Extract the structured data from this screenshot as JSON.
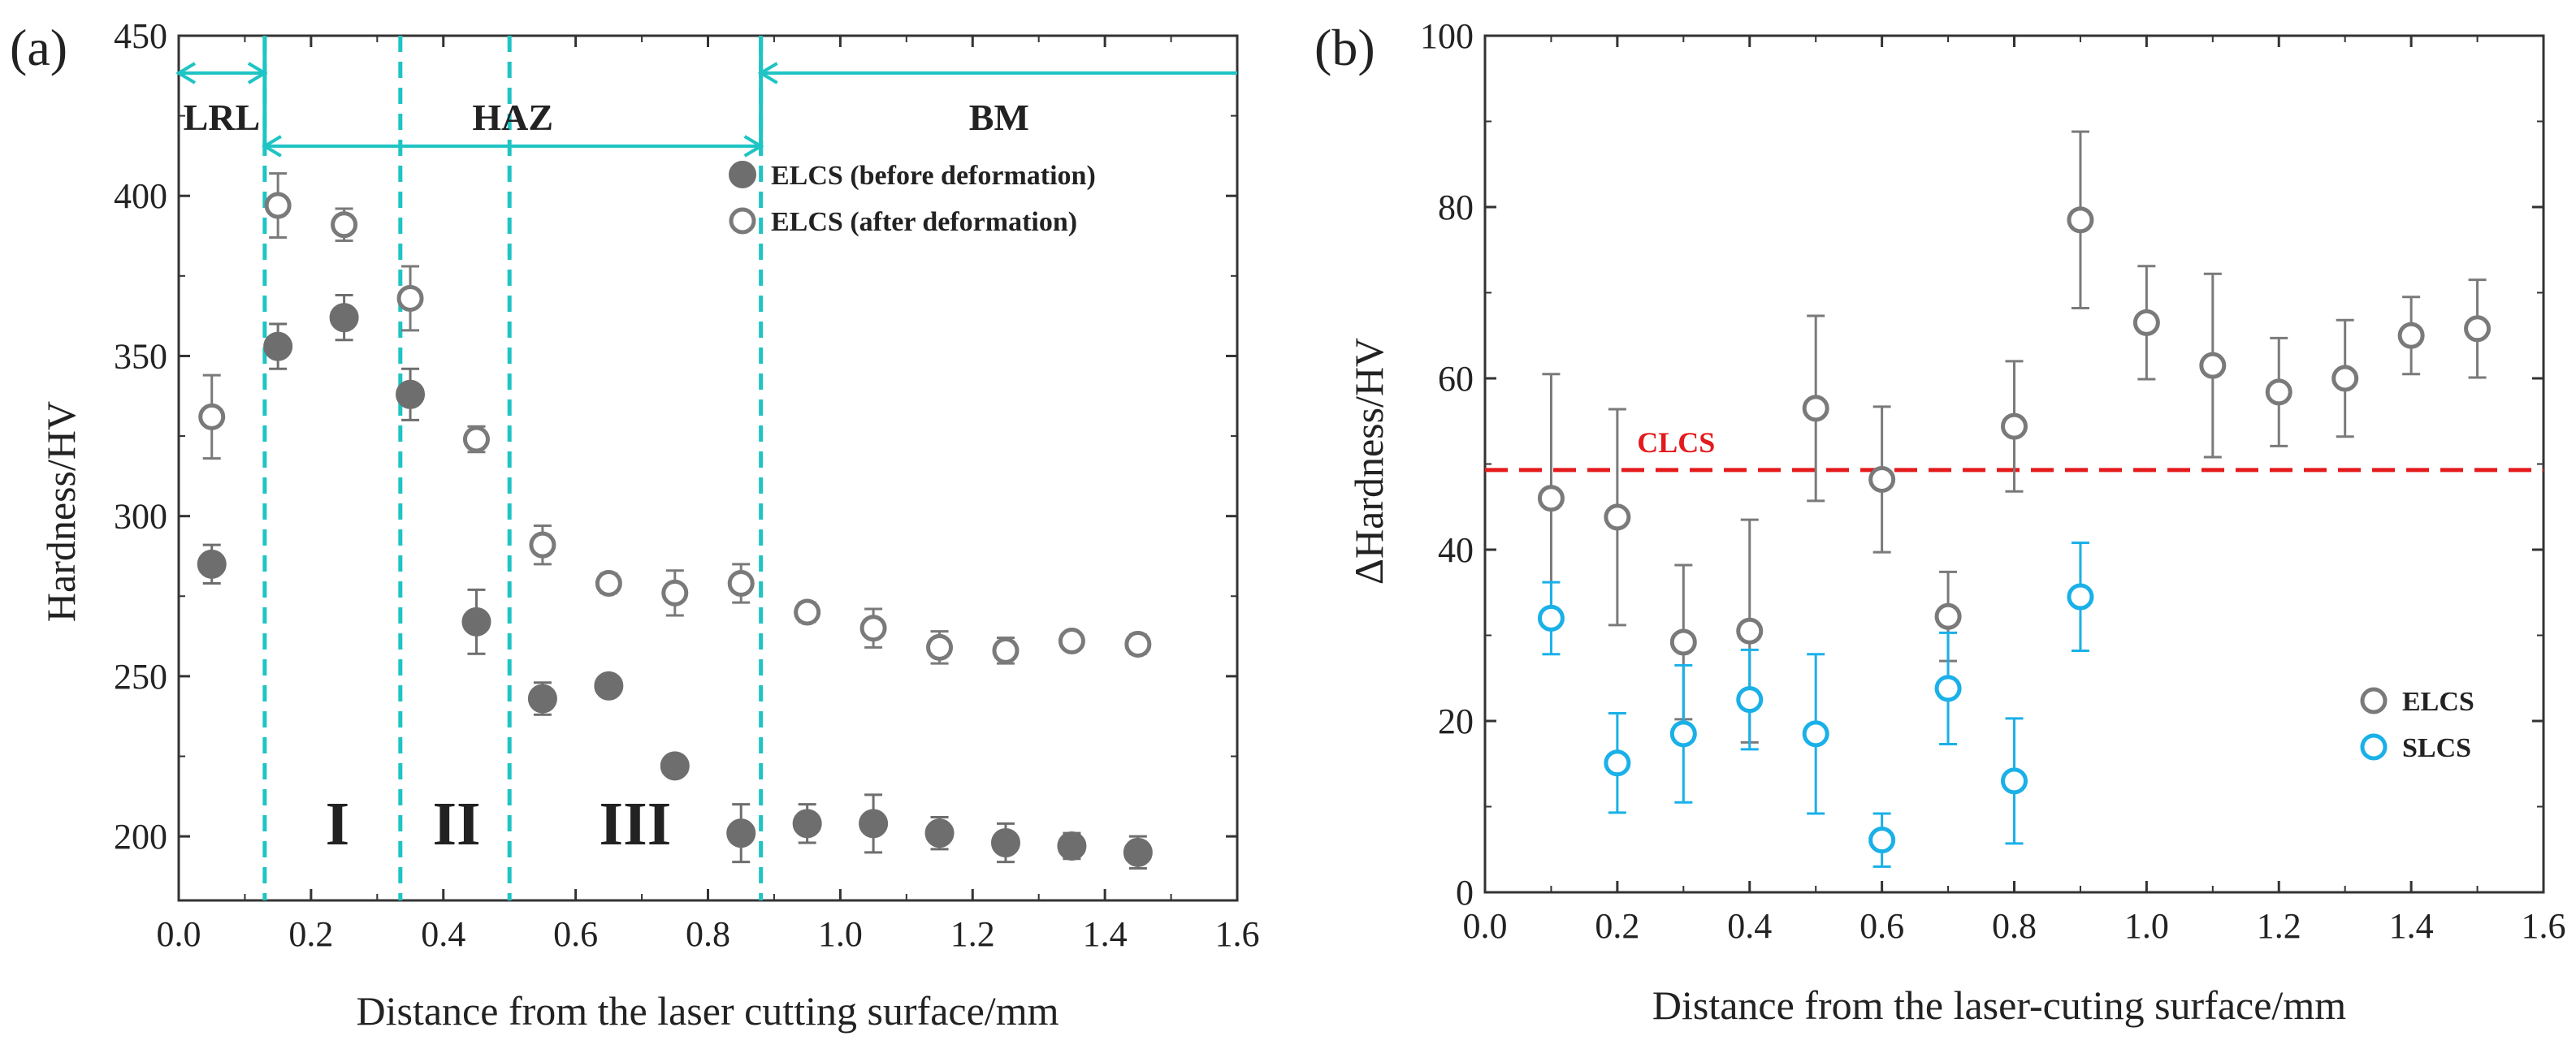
{
  "chart_data": [
    {
      "panel": "(a)",
      "type": "scatter",
      "xlabel": "Distance from the laser cutting surface/mm",
      "ylabel": "Hardness/HV",
      "xlim": [
        0.0,
        1.6
      ],
      "ylim": [
        180,
        450
      ],
      "xticks": [
        0.0,
        0.2,
        0.4,
        0.6,
        0.8,
        1.0,
        1.2,
        1.4,
        1.6
      ],
      "xtick_labels": [
        "0.0",
        "0.2",
        "0.4",
        "0.6",
        "0.8",
        "1.0",
        "1.2",
        "1.4",
        "1.6"
      ],
      "yticks": [
        200,
        250,
        300,
        350,
        400,
        450
      ],
      "ytick_labels": [
        "200",
        "250",
        "300",
        "350",
        "400",
        "450"
      ],
      "region_boundaries": [
        0.13,
        0.335,
        0.5,
        0.88
      ],
      "regions": [
        {
          "label": "LRL",
          "x": 0.065
        },
        {
          "label": "HAZ",
          "x": 0.505
        },
        {
          "label": "BM",
          "x": 1.24
        }
      ],
      "zone_labels": [
        {
          "label": "I",
          "x": 0.24
        },
        {
          "label": "II",
          "x": 0.42
        },
        {
          "label": "III",
          "x": 0.69
        }
      ],
      "series": [
        {
          "name": "ELCS (before deformation)",
          "marker": "filled-circle",
          "color": "#6e6e6e",
          "x": [
            0.05,
            0.15,
            0.25,
            0.35,
            0.45,
            0.55,
            0.65,
            0.75,
            0.85,
            0.95,
            1.05,
            1.15,
            1.25,
            1.35,
            1.45
          ],
          "y": [
            285,
            353,
            362,
            338,
            267,
            243,
            247,
            222,
            201,
            204,
            204,
            201,
            198,
            197,
            195
          ],
          "err": [
            6,
            7,
            7,
            8,
            10,
            5,
            0,
            0,
            9,
            6,
            9,
            5,
            6,
            4,
            5
          ]
        },
        {
          "name": "ELCS (after deformation)",
          "marker": "open-circle",
          "color": "#7a7a7a",
          "x": [
            0.05,
            0.15,
            0.25,
            0.35,
            0.45,
            0.55,
            0.65,
            0.75,
            0.85,
            0.95,
            1.05,
            1.15,
            1.25,
            1.35,
            1.45
          ],
          "y": [
            331,
            397,
            391,
            368,
            324,
            291,
            279,
            276,
            279,
            270,
            265,
            259,
            258,
            261,
            260
          ],
          "err": [
            13,
            10,
            5,
            10,
            4,
            6,
            3,
            7,
            6,
            3,
            6,
            5,
            4,
            2,
            3
          ]
        }
      ]
    },
    {
      "panel": "(b)",
      "type": "scatter",
      "xlabel": "Distance from the laser-cuting surface/mm",
      "ylabel": "ΔHardness/HV",
      "xlim": [
        0.0,
        1.6
      ],
      "ylim": [
        0,
        100
      ],
      "xticks": [
        0.0,
        0.2,
        0.4,
        0.6,
        0.8,
        1.0,
        1.2,
        1.4,
        1.6
      ],
      "xtick_labels": [
        "0.0",
        "0.2",
        "0.4",
        "0.6",
        "0.8",
        "1.0",
        "1.2",
        "1.4",
        "1.6"
      ],
      "yticks": [
        0,
        20,
        40,
        60,
        80,
        100
      ],
      "ytick_labels": [
        "0",
        "20",
        "40",
        "60",
        "80",
        "100"
      ],
      "reference_line": {
        "label": "CLCS",
        "y": 49.3,
        "color": "#e41a1c"
      },
      "series": [
        {
          "name": "ELCS",
          "marker": "open-circle",
          "color": "#7a7a7a",
          "x": [
            0.1,
            0.2,
            0.3,
            0.4,
            0.5,
            0.6,
            0.7,
            0.8,
            0.9,
            1.0,
            1.1,
            1.2,
            1.3,
            1.4,
            1.5
          ],
          "y": [
            46,
            43.8,
            29.2,
            30.5,
            56.5,
            48.2,
            32.2,
            54.4,
            78.5,
            66.5,
            61.5,
            58.4,
            60,
            65,
            65.8
          ],
          "err": [
            14.5,
            12.6,
            9,
            13,
            10.8,
            8.5,
            5.2,
            7.6,
            10.3,
            6.6,
            10.7,
            6.3,
            6.8,
            4.5,
            5.7
          ]
        },
        {
          "name": "SLCS",
          "marker": "open-circle",
          "color": "#1ab0e8",
          "x": [
            0.1,
            0.2,
            0.3,
            0.4,
            0.5,
            0.6,
            0.7,
            0.8,
            0.9
          ],
          "y": [
            32,
            15.1,
            18.5,
            22.5,
            18.5,
            6.1,
            23.8,
            13,
            34.5
          ],
          "err": [
            4.2,
            5.8,
            8,
            5.8,
            9.3,
            3.1,
            6.5,
            7.3,
            6.3
          ]
        }
      ]
    }
  ]
}
